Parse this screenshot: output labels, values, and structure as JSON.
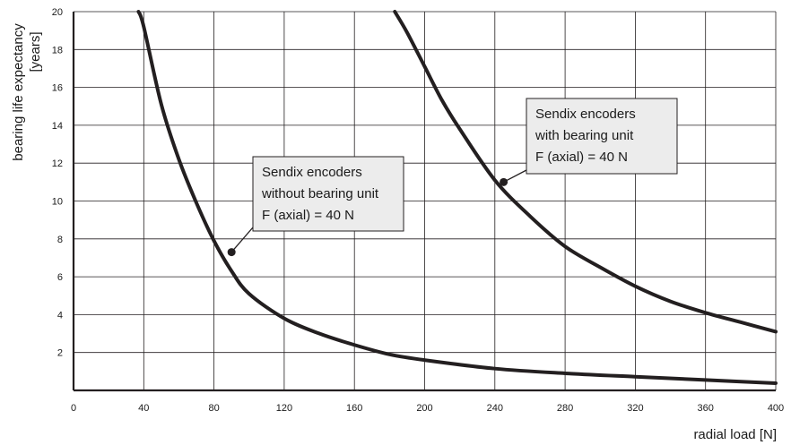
{
  "chart_data": {
    "type": "line",
    "title": "",
    "xlabel": "radial load [N]",
    "ylabel": [
      "bearing life expectancy",
      "[years]"
    ],
    "xlim": [
      0,
      400
    ],
    "ylim": [
      0,
      20
    ],
    "x_ticks": [
      0,
      40,
      80,
      120,
      160,
      200,
      240,
      280,
      320,
      360,
      400
    ],
    "y_ticks": [
      2,
      4,
      6,
      8,
      10,
      12,
      14,
      16,
      18,
      20
    ],
    "grid": true,
    "legend": "none",
    "series": [
      {
        "x": [
          37,
          40,
          50,
          60,
          70,
          80,
          90,
          100,
          120,
          140,
          160,
          180,
          200,
          240,
          280,
          320,
          360,
          400
        ],
        "y": [
          20,
          19.2,
          15.1,
          12.2,
          9.9,
          7.9,
          6.3,
          5.1,
          3.8,
          3.0,
          2.4,
          1.9,
          1.6,
          1.15,
          0.9,
          0.72,
          0.55,
          0.38
        ],
        "color": "#231f20"
      },
      {
        "x": [
          183,
          190,
          200,
          210,
          220,
          240,
          260,
          280,
          300,
          320,
          340,
          360,
          380,
          400
        ],
        "y": [
          20,
          18.9,
          17.1,
          15.3,
          13.8,
          11.1,
          9.2,
          7.6,
          6.5,
          5.5,
          4.7,
          4.1,
          3.6,
          3.1
        ],
        "color": "#231f20"
      }
    ],
    "annotations": [
      {
        "lines": [
          "Sendix encoders",
          "without bearing unit",
          "F (axial) = 40 N"
        ],
        "point": [
          90,
          7.3
        ]
      },
      {
        "lines": [
          "Sendix encoders",
          "with bearing unit",
          "F (axial) = 40 N"
        ],
        "point": [
          245,
          11.0
        ]
      }
    ]
  }
}
